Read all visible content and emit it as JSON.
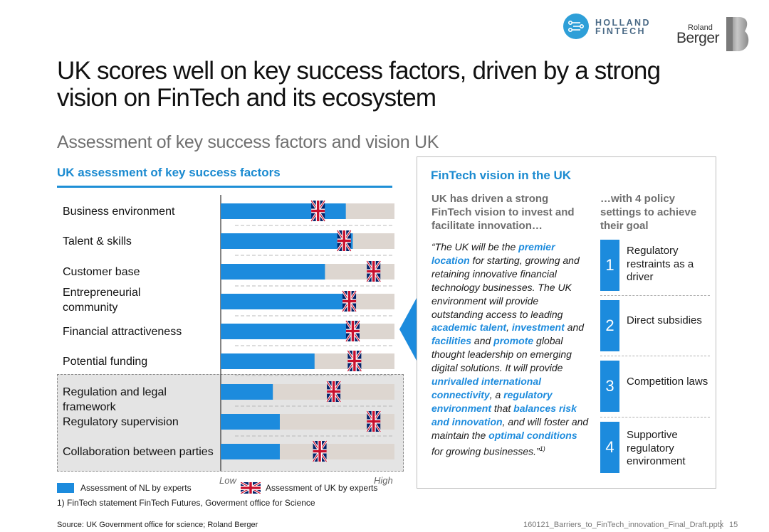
{
  "logos": {
    "holland_fintech_line1": "HOLLAND",
    "holland_fintech_line2": "FINTECH",
    "roland": "Roland",
    "berger": "Berger"
  },
  "title": "UK scores well on key success factors, driven by a strong vision on FinTech and its ecosystem",
  "subtitle": "Assessment of key success factors and vision UK",
  "left_heading": "UK assessment of key success factors",
  "chart_data": {
    "type": "bar",
    "title": "UK assessment of key success factors",
    "categories": [
      "Business environment",
      "Talent & skills",
      "Customer base",
      "Entrepreneurial community",
      "Financial attractiveness",
      "Potential funding",
      "Regulation and legal framework",
      "Regulatory supervision",
      "Collaboration between parties"
    ],
    "series": [
      {
        "name": "Assessment of NL by experts",
        "values": [
          72,
          76,
          60,
          73,
          73,
          54,
          30,
          34,
          34
        ],
        "color": "#1c8bdd"
      },
      {
        "name": "Assessment of UK by experts",
        "values": [
          56,
          71,
          88,
          74,
          76,
          77,
          65,
          88,
          57
        ],
        "marker": "uk-flag"
      }
    ],
    "highlighted_group": [
      "Regulation and legal framework",
      "Regulatory supervision",
      "Collaboration between parties"
    ],
    "xlim": [
      0,
      100
    ],
    "axis_low_label": "Low",
    "axis_high_label": "High",
    "track_color": "#ddd6d0"
  },
  "legend": {
    "nl": "Assessment of NL by experts",
    "uk": "Assessment of UK by experts"
  },
  "footnote": "1) FinTech statement FinTech Futures, Goverment office for Science",
  "source": "Source: UK Government office for science; Roland Berger",
  "filename": "160121_Barriers_to_FinTech_innovation_Final_Draft.pptx",
  "page_number": "15",
  "vision": {
    "heading": "FinTech vision in the UK",
    "left_col_heading": "UK has driven a strong FinTech vision to invest and facilitate innovation…",
    "right_col_heading": "…with 4 policy settings to achieve their goal",
    "quote": {
      "t1": "“The UK will be the ",
      "b1": "premier location",
      "t2": " for starting, growing and retaining innovative financial technology businesses. The UK environment will provide outstanding access to leading ",
      "b2": "academic talent",
      "t3": ", ",
      "b3": "investment",
      "t4": " and ",
      "b4": "facilities",
      "t5": " and ",
      "b5": "promote",
      "t6": " global thought leadership on emerging digital solutions. It will provide ",
      "b6": "unrivalled international connectivity",
      "t7": ", a ",
      "b7": "regulatory environment",
      "t8": " that ",
      "b8": "balances risk and innovation",
      "t9": ", and will foster and maintain the ",
      "b9": "optimal conditions",
      "t10": " for growing businesses.”",
      "sup": "1)"
    },
    "policies": [
      {
        "number": "1",
        "label": "Regulatory restraints as a driver"
      },
      {
        "number": "2",
        "label": "Direct subsidies"
      },
      {
        "number": "3",
        "label": "Competition laws"
      },
      {
        "number": "4",
        "label": "Supportive regulatory environment"
      }
    ]
  }
}
